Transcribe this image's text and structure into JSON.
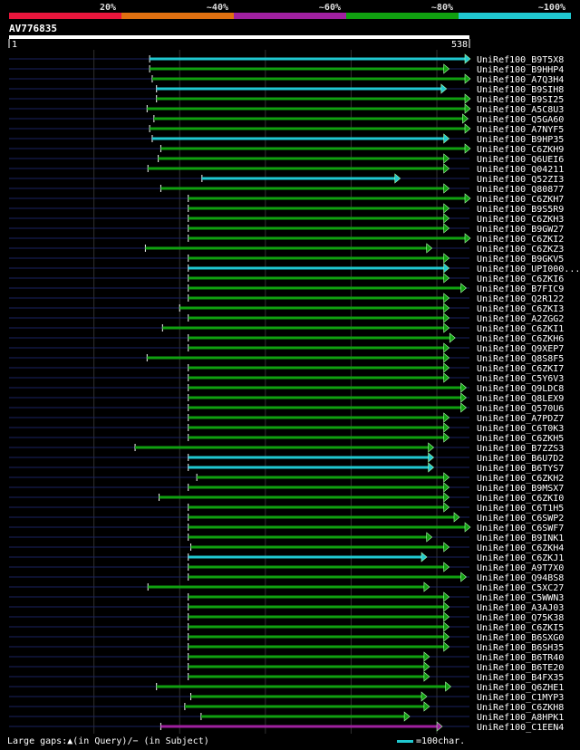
{
  "query": {
    "name": "AV776835",
    "start_label": "1",
    "end_label": "538",
    "length": 538
  },
  "colors": {
    "lt40": "#e8163c",
    "40_60": "#e07010",
    "60_80": "#a020a0",
    "80_100": "#10a010",
    "gt100": "#20c8d0",
    "axis": "#ffffff",
    "guide": "#303030",
    "track": "#1a2260"
  },
  "legend": [
    {
      "label": "20%",
      "color": "#e8163c"
    },
    {
      "label": "~40%",
      "color": "#e07010"
    },
    {
      "label": "~60%",
      "color": "#a020a0"
    },
    {
      "label": "~80%",
      "color": "#10a010"
    },
    {
      "label": "~100%",
      "color": "#20c8d0"
    }
  ],
  "footer": {
    "text": "Large gaps:▲(in Query)/− (in Subject)",
    "scale_text": "=100char."
  },
  "chart_data": {
    "type": "alignment-hits",
    "x_range": [
      1,
      538
    ],
    "hits": [
      {
        "name": "UniRef100_B9T5X8",
        "start": 165,
        "end": 538,
        "color": "#20c8d0"
      },
      {
        "name": "UniRef100_B9HHP4",
        "start": 165,
        "end": 508,
        "color": "#10a010"
      },
      {
        "name": "UniRef100_A7Q3H4",
        "start": 168,
        "end": 538,
        "color": "#10a010"
      },
      {
        "name": "UniRef100_B9SIH8",
        "start": 173,
        "end": 505,
        "color": "#20c8d0"
      },
      {
        "name": "UniRef100_B9SI25",
        "start": 173,
        "end": 538,
        "color": "#10a010"
      },
      {
        "name": "UniRef100_A5C8U3",
        "start": 162,
        "end": 538,
        "color": "#10a010"
      },
      {
        "name": "UniRef100_Q5GA60",
        "start": 170,
        "end": 530,
        "color": "#10a010"
      },
      {
        "name": "UniRef100_A7NYF5",
        "start": 165,
        "end": 538,
        "color": "#10a010"
      },
      {
        "name": "UniRef100_B9HP35",
        "start": 168,
        "end": 508,
        "color": "#20c8d0"
      },
      {
        "name": "UniRef100_C6ZKH9",
        "start": 178,
        "end": 538,
        "color": "#10a010"
      },
      {
        "name": "UniRef100_Q6UEI6",
        "start": 175,
        "end": 508,
        "color": "#10a010"
      },
      {
        "name": "UniRef100_Q04211",
        "start": 163,
        "end": 508,
        "color": "#10a010"
      },
      {
        "name": "UniRef100_Q52ZI3",
        "start": 226,
        "end": 451,
        "color": "#20c8d0"
      },
      {
        "name": "UniRef100_Q80877",
        "start": 178,
        "end": 508,
        "color": "#10a010"
      },
      {
        "name": "UniRef100_C6ZKH7",
        "start": 210,
        "end": 538,
        "color": "#10a010"
      },
      {
        "name": "UniRef100_B9S5R9",
        "start": 210,
        "end": 508,
        "color": "#10a010"
      },
      {
        "name": "UniRef100_C6ZKH3",
        "start": 210,
        "end": 508,
        "color": "#10a010"
      },
      {
        "name": "UniRef100_B9GW27",
        "start": 210,
        "end": 508,
        "color": "#10a010"
      },
      {
        "name": "UniRef100_C6ZKI2",
        "start": 210,
        "end": 538,
        "color": "#10a010"
      },
      {
        "name": "UniRef100_C6ZKZ3",
        "start": 160,
        "end": 488,
        "color": "#10a010"
      },
      {
        "name": "UniRef100_B9GKV5",
        "start": 210,
        "end": 508,
        "color": "#10a010"
      },
      {
        "name": "UniRef100_UPI000...",
        "start": 210,
        "end": 508,
        "color": "#20c8d0"
      },
      {
        "name": "UniRef100_C6ZKI6",
        "start": 210,
        "end": 508,
        "color": "#10a010"
      },
      {
        "name": "UniRef100_B7FIC9",
        "start": 210,
        "end": 528,
        "color": "#10a010"
      },
      {
        "name": "UniRef100_Q2R122",
        "start": 210,
        "end": 508,
        "color": "#10a010"
      },
      {
        "name": "UniRef100_C6ZKI3",
        "start": 200,
        "end": 508,
        "color": "#10a010"
      },
      {
        "name": "UniRef100_A2ZGG2",
        "start": 210,
        "end": 508,
        "color": "#10a010"
      },
      {
        "name": "UniRef100_C6ZKI1",
        "start": 180,
        "end": 508,
        "color": "#10a010"
      },
      {
        "name": "UniRef100_C6ZKH6",
        "start": 210,
        "end": 515,
        "color": "#10a010"
      },
      {
        "name": "UniRef100_Q9XEP7",
        "start": 210,
        "end": 508,
        "color": "#10a010"
      },
      {
        "name": "UniRef100_Q8S8F5",
        "start": 162,
        "end": 508,
        "color": "#10a010"
      },
      {
        "name": "UniRef100_C6ZKI7",
        "start": 210,
        "end": 508,
        "color": "#10a010"
      },
      {
        "name": "UniRef100_C5Y6V3",
        "start": 210,
        "end": 508,
        "color": "#10a010"
      },
      {
        "name": "UniRef100_Q9LDC8",
        "start": 210,
        "end": 528,
        "color": "#10a010"
      },
      {
        "name": "UniRef100_Q8LEX9",
        "start": 210,
        "end": 528,
        "color": "#10a010"
      },
      {
        "name": "UniRef100_Q570U6",
        "start": 210,
        "end": 528,
        "color": "#10a010"
      },
      {
        "name": "UniRef100_A7PDZ7",
        "start": 210,
        "end": 508,
        "color": "#10a010"
      },
      {
        "name": "UniRef100_C6T0K3",
        "start": 210,
        "end": 508,
        "color": "#10a010"
      },
      {
        "name": "UniRef100_C6ZKH5",
        "start": 210,
        "end": 508,
        "color": "#10a010"
      },
      {
        "name": "UniRef100_B7ZZS3",
        "start": 148,
        "end": 490,
        "color": "#10a010"
      },
      {
        "name": "UniRef100_B6U7D2",
        "start": 210,
        "end": 490,
        "color": "#20c8d0"
      },
      {
        "name": "UniRef100_B6TYS7",
        "start": 210,
        "end": 490,
        "color": "#20c8d0"
      },
      {
        "name": "UniRef100_C6ZKH2",
        "start": 220,
        "end": 508,
        "color": "#10a010"
      },
      {
        "name": "UniRef100_B9MSX7",
        "start": 210,
        "end": 508,
        "color": "#10a010"
      },
      {
        "name": "UniRef100_C6ZKI0",
        "start": 176,
        "end": 508,
        "color": "#10a010"
      },
      {
        "name": "UniRef100_C6T1H5",
        "start": 210,
        "end": 508,
        "color": "#10a010"
      },
      {
        "name": "UniRef100_C6SWP2",
        "start": 210,
        "end": 520,
        "color": "#10a010"
      },
      {
        "name": "UniRef100_C6SWF7",
        "start": 210,
        "end": 538,
        "color": "#10a010"
      },
      {
        "name": "UniRef100_B9INK1",
        "start": 210,
        "end": 488,
        "color": "#10a010"
      },
      {
        "name": "UniRef100_C6ZKH4",
        "start": 213,
        "end": 508,
        "color": "#10a010"
      },
      {
        "name": "UniRef100_C6ZKJ1",
        "start": 210,
        "end": 482,
        "color": "#20c8d0"
      },
      {
        "name": "UniRef100_A9T7X0",
        "start": 210,
        "end": 508,
        "color": "#10a010"
      },
      {
        "name": "UniRef100_Q94BS8",
        "start": 210,
        "end": 528,
        "color": "#10a010"
      },
      {
        "name": "UniRef100_C5XC27",
        "start": 163,
        "end": 485,
        "color": "#10a010"
      },
      {
        "name": "UniRef100_C5WWN3",
        "start": 210,
        "end": 508,
        "color": "#10a010"
      },
      {
        "name": "UniRef100_A3AJ03",
        "start": 210,
        "end": 508,
        "color": "#10a010"
      },
      {
        "name": "UniRef100_Q75K38",
        "start": 210,
        "end": 508,
        "color": "#10a010"
      },
      {
        "name": "UniRef100_C6ZKI5",
        "start": 210,
        "end": 508,
        "color": "#10a010"
      },
      {
        "name": "UniRef100_B6SXG0",
        "start": 210,
        "end": 508,
        "color": "#10a010"
      },
      {
        "name": "UniRef100_B6SH35",
        "start": 210,
        "end": 508,
        "color": "#10a010"
      },
      {
        "name": "UniRef100_B6TR40",
        "start": 210,
        "end": 485,
        "color": "#10a010"
      },
      {
        "name": "UniRef100_B6TE20",
        "start": 210,
        "end": 485,
        "color": "#10a010"
      },
      {
        "name": "UniRef100_B4FX35",
        "start": 210,
        "end": 485,
        "color": "#10a010"
      },
      {
        "name": "UniRef100_Q6ZHE1",
        "start": 173,
        "end": 510,
        "color": "#10a010"
      },
      {
        "name": "UniRef100_C1MYP3",
        "start": 213,
        "end": 482,
        "color": "#10a010"
      },
      {
        "name": "UniRef100_C6ZKH8",
        "start": 206,
        "end": 485,
        "color": "#10a010"
      },
      {
        "name": "UniRef100_A8HPK1",
        "start": 225,
        "end": 462,
        "color": "#10a010"
      },
      {
        "name": "UniRef100_C1EEN4",
        "start": 178,
        "end": 500,
        "color": "#a020a0"
      }
    ]
  }
}
